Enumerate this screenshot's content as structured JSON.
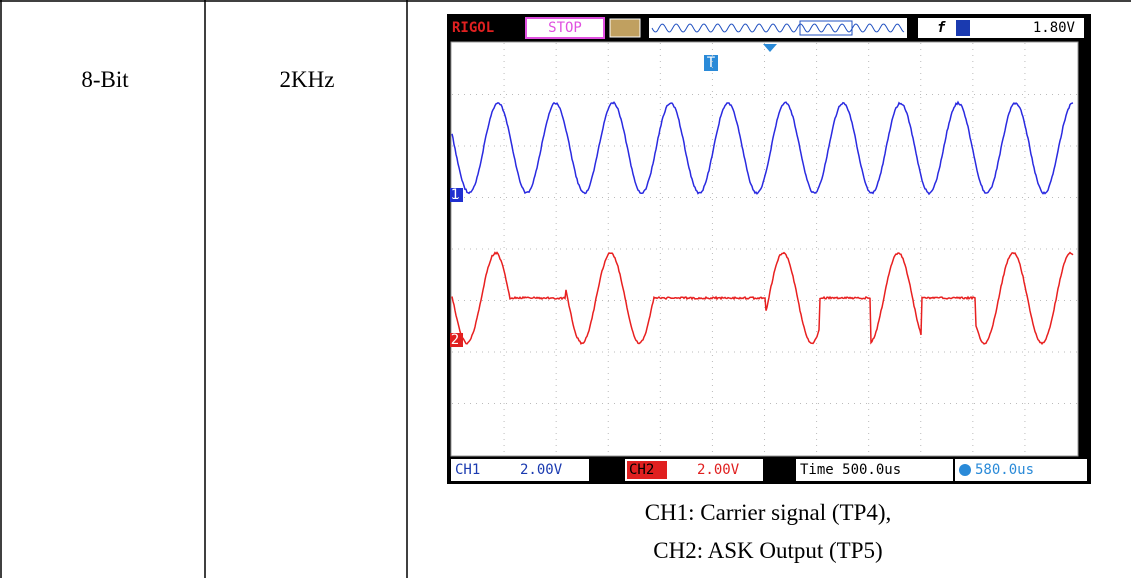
{
  "table": {
    "rows": [
      {
        "bits": "8-Bit",
        "frequency": "2KHz",
        "scope": {
          "brand": "RIGOL",
          "status": "STOP",
          "trigger_level": "1.80V",
          "trigger_marker": "T",
          "ch1_marker": "1",
          "ch2_marker": "2",
          "ch1_label": "CH1",
          "ch1_scale": "2.00V",
          "ch2_label": "CH2",
          "ch2_scale": "2.00V",
          "timebase": "Time 500.0us",
          "trigger_offset": "580.0us"
        },
        "caption": [
          "CH1: Carrier signal (TP4),",
          "CH2: ASK Output (TP5)"
        ]
      }
    ]
  }
}
